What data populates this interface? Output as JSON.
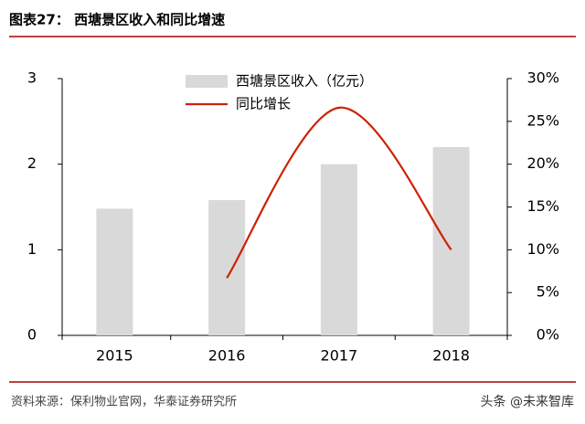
{
  "chart_data": {
    "type": "bar",
    "title": "图表27：  西塘景区收入和同比增速",
    "source": "资料来源：保利物业官网，华泰证券研究所",
    "watermark": "头条 @未来智库",
    "categories": [
      "2015",
      "2016",
      "2017",
      "2018"
    ],
    "series": [
      {
        "name": "西塘景区收入（亿元）",
        "type": "bar",
        "color": "#d9d9d9",
        "values": [
          1.48,
          1.58,
          2.0,
          2.2
        ]
      },
      {
        "name": "同比增长",
        "type": "line",
        "axis": "y2",
        "color": "#cc2200",
        "values": [
          null,
          6.7,
          26.6,
          10
        ]
      }
    ],
    "ylim": [
      0,
      3
    ],
    "yticks": [
      0,
      1,
      2,
      3
    ],
    "y2lim": [
      0,
      30
    ],
    "y2ticks": [
      {
        "value": 0,
        "label": "0%"
      },
      {
        "value": 5,
        "label": "5%"
      },
      {
        "value": 10,
        "label": "10%"
      },
      {
        "value": 15,
        "label": "15%"
      },
      {
        "value": 20,
        "label": "20%"
      },
      {
        "value": 25,
        "label": "25%"
      },
      {
        "value": 30,
        "label": "30%"
      }
    ]
  }
}
